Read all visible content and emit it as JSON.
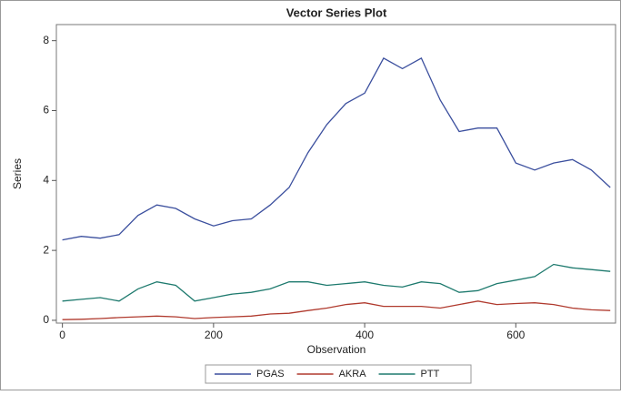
{
  "chart_data": {
    "type": "line",
    "title": "Vector Series Plot",
    "x_label": "Observation",
    "y_label": "Series",
    "x": [
      0,
      25,
      50,
      75,
      100,
      125,
      150,
      175,
      200,
      225,
      250,
      275,
      300,
      325,
      350,
      375,
      400,
      425,
      450,
      475,
      500,
      525,
      550,
      575,
      600,
      625,
      650,
      675,
      700,
      725
    ],
    "series": [
      {
        "name": "PGAS",
        "color": "#3b4f9e",
        "values": [
          2.3,
          2.4,
          2.35,
          2.45,
          3.0,
          3.3,
          3.2,
          2.9,
          2.7,
          2.85,
          2.9,
          3.3,
          3.8,
          4.8,
          5.6,
          6.2,
          6.5,
          7.5,
          7.2,
          7.5,
          6.3,
          5.4,
          5.5,
          5.5,
          4.5,
          4.3,
          4.5,
          4.6,
          4.3,
          3.8
        ]
      },
      {
        "name": "AKRA",
        "color": "#b03a2e",
        "values": [
          0.02,
          0.03,
          0.05,
          0.08,
          0.1,
          0.12,
          0.1,
          0.05,
          0.08,
          0.1,
          0.12,
          0.18,
          0.2,
          0.28,
          0.35,
          0.45,
          0.5,
          0.4,
          0.4,
          0.4,
          0.35,
          0.45,
          0.55,
          0.45,
          0.48,
          0.5,
          0.45,
          0.35,
          0.3,
          0.28
        ]
      },
      {
        "name": "PTT",
        "color": "#1e7a6e",
        "values": [
          0.55,
          0.6,
          0.65,
          0.55,
          0.9,
          1.1,
          1.0,
          0.55,
          0.65,
          0.75,
          0.8,
          0.9,
          1.1,
          1.1,
          1.0,
          1.05,
          1.1,
          1.0,
          0.95,
          1.1,
          1.05,
          0.8,
          0.85,
          1.05,
          1.15,
          1.25,
          1.6,
          1.5,
          1.45,
          1.4
        ]
      }
    ],
    "xlim": [
      -8,
      732
    ],
    "xticks": [
      0,
      200,
      400,
      600
    ],
    "ylim": [
      -0.08,
      8.46
    ],
    "yticks": [
      0,
      2,
      4,
      6,
      8
    ],
    "grid": false,
    "legend": "bottom"
  }
}
